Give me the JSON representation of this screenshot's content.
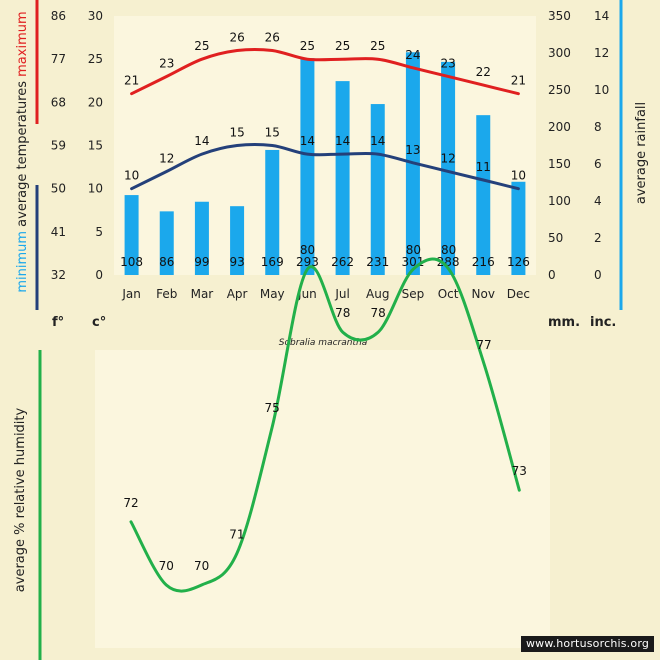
{
  "chart_data": [
    {
      "type": "bar+line",
      "categories": [
        "Jan",
        "Feb",
        "Mar",
        "Apr",
        "May",
        "Jun",
        "Jul",
        "Aug",
        "Sep",
        "Oct",
        "Nov",
        "Dec"
      ],
      "title": "Sobralia macrantha",
      "ylabel_parts": {
        "lead": "minimum",
        "middle": "average temperatures",
        "trail": "maximum"
      },
      "ylabel_right": "average rainfall",
      "units": {
        "fahrenheit": "f°",
        "celsius": "c°",
        "mm": "mm.",
        "inch": "inc."
      },
      "axes": {
        "celsius": {
          "range": [
            0,
            30
          ],
          "ticks": [
            0,
            5,
            10,
            15,
            20,
            25,
            30
          ]
        },
        "fahrenheit": {
          "range": [
            32,
            86
          ],
          "ticks": [
            32,
            41,
            50,
            59,
            68,
            77,
            86
          ]
        },
        "rain_mm": {
          "range": [
            0,
            350
          ],
          "ticks": [
            0,
            50,
            100,
            150,
            200,
            250,
            300,
            350
          ]
        },
        "rain_inch": {
          "range": [
            0,
            14
          ],
          "ticks": [
            0,
            2,
            4,
            6,
            8,
            10,
            12,
            14
          ]
        }
      },
      "series": [
        {
          "name": "maximum",
          "color": "#e02020",
          "values": [
            21,
            23,
            25,
            26,
            26,
            25,
            25,
            25,
            24,
            23,
            22,
            21
          ]
        },
        {
          "name": "minimum",
          "color": "#24407a",
          "values": [
            10,
            12,
            14,
            15,
            15,
            14,
            14,
            14,
            13,
            12,
            11,
            10
          ]
        },
        {
          "name": "average rainfall",
          "color": "#1ba8ec",
          "values": [
            108,
            86,
            99,
            93,
            169,
            293,
            262,
            231,
            301,
            288,
            216,
            126
          ]
        }
      ]
    },
    {
      "type": "line",
      "ylabel": "average %  relative humidity",
      "ylim": [
        60,
        85
      ],
      "series": [
        {
          "color": "#22b04a",
          "values": [
            72,
            70,
            70,
            71,
            75,
            80,
            78,
            78,
            80,
            80,
            77,
            73
          ]
        }
      ]
    }
  ],
  "watermark": "www.hortusorchis.org"
}
